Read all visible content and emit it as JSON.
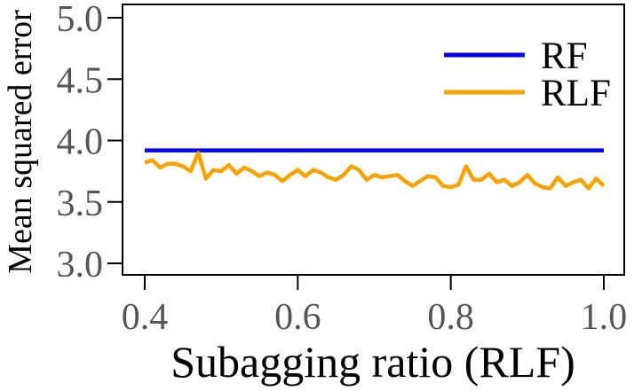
{
  "chart_data": {
    "type": "line",
    "title": "",
    "xlabel": "Subagging ratio (RLF)",
    "ylabel": "Mean squared error",
    "xlim": [
      0.4,
      1.0
    ],
    "ylim": [
      3.0,
      5.0
    ],
    "xticks": [
      0.4,
      0.6,
      0.8,
      1.0
    ],
    "xtick_labels": [
      "0.4",
      "0.6",
      "0.8",
      "1.0"
    ],
    "yticks": [
      3.0,
      3.5,
      4.0,
      4.5,
      5.0
    ],
    "ytick_labels": [
      "3.0",
      "3.5",
      "4.0",
      "4.5",
      "5.0"
    ],
    "grid": false,
    "legend_position": "top-right",
    "series": [
      {
        "name": "RF",
        "color": "#0000ee",
        "x": [
          0.4,
          1.0
        ],
        "y": [
          3.92,
          3.92
        ]
      },
      {
        "name": "RLF",
        "color": "#f5a300",
        "x": [
          0.4,
          0.41,
          0.42,
          0.43,
          0.44,
          0.45,
          0.46,
          0.47,
          0.48,
          0.49,
          0.5,
          0.51,
          0.52,
          0.53,
          0.54,
          0.55,
          0.56,
          0.57,
          0.58,
          0.59,
          0.6,
          0.61,
          0.62,
          0.63,
          0.64,
          0.65,
          0.66,
          0.67,
          0.68,
          0.69,
          0.7,
          0.71,
          0.72,
          0.73,
          0.74,
          0.75,
          0.76,
          0.77,
          0.78,
          0.79,
          0.8,
          0.81,
          0.82,
          0.83,
          0.84,
          0.85,
          0.86,
          0.87,
          0.88,
          0.89,
          0.9,
          0.91,
          0.92,
          0.93,
          0.94,
          0.95,
          0.96,
          0.97,
          0.98,
          0.99,
          1.0
        ],
        "y": [
          3.82,
          3.84,
          3.78,
          3.81,
          3.81,
          3.79,
          3.75,
          3.9,
          3.69,
          3.76,
          3.75,
          3.8,
          3.73,
          3.78,
          3.75,
          3.71,
          3.74,
          3.72,
          3.67,
          3.72,
          3.76,
          3.71,
          3.76,
          3.74,
          3.7,
          3.68,
          3.72,
          3.79,
          3.76,
          3.68,
          3.72,
          3.7,
          3.71,
          3.72,
          3.67,
          3.63,
          3.67,
          3.71,
          3.7,
          3.63,
          3.62,
          3.64,
          3.79,
          3.68,
          3.68,
          3.73,
          3.66,
          3.68,
          3.63,
          3.66,
          3.72,
          3.65,
          3.62,
          3.61,
          3.7,
          3.63,
          3.66,
          3.68,
          3.61,
          3.69,
          3.63
        ]
      }
    ]
  }
}
